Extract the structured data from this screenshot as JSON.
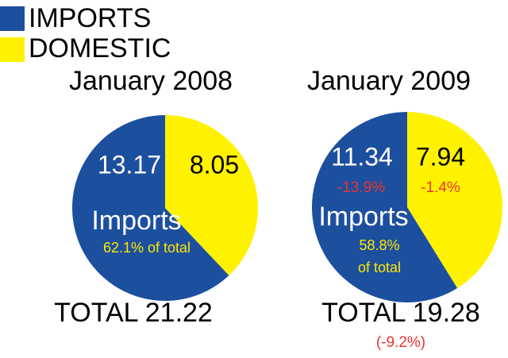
{
  "chart_data": [
    {
      "type": "pie",
      "title": "January 2008",
      "categories": [
        "IMPORTS",
        "DOMESTIC"
      ],
      "values": [
        13.17,
        8.05
      ],
      "colors": [
        "#1d4f9f",
        "#fff200"
      ],
      "annotations": [
        "Imports",
        "62.1% of total",
        "TOTAL 21.22"
      ]
    },
    {
      "type": "pie",
      "title": "January 2009",
      "categories": [
        "IMPORTS",
        "DOMESTIC"
      ],
      "values": [
        11.34,
        7.94
      ],
      "colors": [
        "#1d4f9f",
        "#fff200"
      ],
      "annotations": [
        "Imports",
        "58.8%",
        "of total",
        "TOTAL 19.28",
        "-13.9%",
        "-1.4%",
        "(-9.2%)"
      ]
    }
  ]
}
